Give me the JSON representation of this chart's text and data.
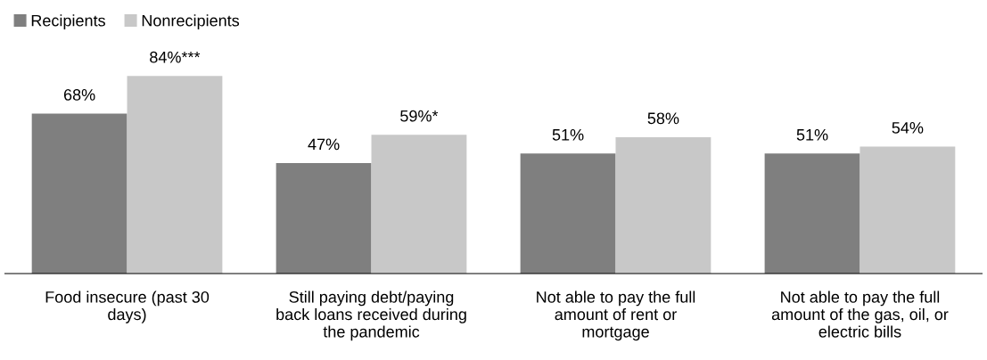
{
  "chart_data": {
    "type": "bar",
    "categories": [
      "Food insecure (past 30\ndays)",
      "Still paying debt/paying\nback loans received during\nthe pandemic",
      "Not able to pay the full\namount of rent or\nmortgage",
      "Not able to pay the full\namount of the gas, oil, or\nelectric bills"
    ],
    "series": [
      {
        "name": "Recipients",
        "color": "#7f7f7f",
        "values": [
          68,
          47,
          51,
          51
        ],
        "value_labels": [
          "68%",
          "47%",
          "51%",
          "51%"
        ]
      },
      {
        "name": "Nonrecipients",
        "color": "#c8c8c8",
        "values": [
          84,
          59,
          58,
          54
        ],
        "value_labels": [
          "84%***",
          "59%*",
          "58%",
          "54%"
        ]
      }
    ],
    "legend": "top left",
    "grid": false
  }
}
